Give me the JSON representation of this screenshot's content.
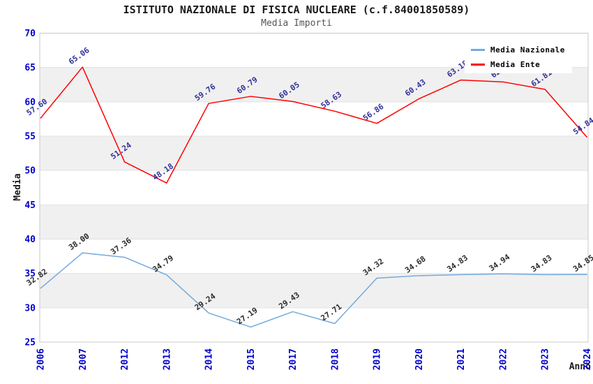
{
  "header": {
    "title": "ISTITUTO NAZIONALE DI FISICA NUCLEARE (c.f.84001850589)",
    "subtitle": "Media Importi"
  },
  "chart_data": {
    "type": "line",
    "title": "ISTITUTO NAZIONALE DI FISICA NUCLEARE (c.f.84001850589)",
    "subtitle": "Media Importi",
    "xlabel": "Anno",
    "ylabel": "Media",
    "ylim": [
      25,
      70
    ],
    "ytick_step": 5,
    "grid": "horizontal-bands",
    "legend_position": "top-right",
    "categories": [
      "2006",
      "2007",
      "2012",
      "2013",
      "2014",
      "2015",
      "2017",
      "2018",
      "2019",
      "2020",
      "2021",
      "2022",
      "2023",
      "2024"
    ],
    "series": [
      {
        "name": "Media Nazionale",
        "color": "#74a9dc",
        "label_color": "#2b2b2b",
        "values": [
          32.82,
          38.0,
          37.36,
          34.79,
          29.24,
          27.19,
          29.43,
          27.71,
          34.32,
          34.68,
          34.83,
          34.94,
          34.83,
          34.85
        ],
        "labels": [
          "32.82",
          "38.00",
          "37.36",
          "34.79",
          "29.24",
          "27.19",
          "29.43",
          "27.71",
          "34.32",
          "34.68",
          "34.83",
          "34.94",
          "34.83",
          "34.85"
        ]
      },
      {
        "name": "Media Ente",
        "color": "#ff0000",
        "label_color": "#333399",
        "values": [
          57.6,
          65.06,
          51.24,
          48.18,
          59.76,
          60.79,
          60.05,
          58.63,
          56.86,
          60.43,
          63.18,
          62.9,
          61.81,
          54.84
        ],
        "labels": [
          "57.60",
          "65.06",
          "51.24",
          "48.18",
          "59.76",
          "60.79",
          "60.05",
          "58.63",
          "56.86",
          "60.43",
          "63.18",
          "62.9",
          "61.81",
          "54.84"
        ]
      }
    ],
    "colors": {
      "tick_label": "#0000cc",
      "band": "#f0f0f0",
      "gridline": "#e2e2e2",
      "plot_border": "#c9c9c9",
      "title": "#1a1a1a",
      "subtitle": "#555555",
      "axis_title": "#1a1a1a"
    }
  }
}
